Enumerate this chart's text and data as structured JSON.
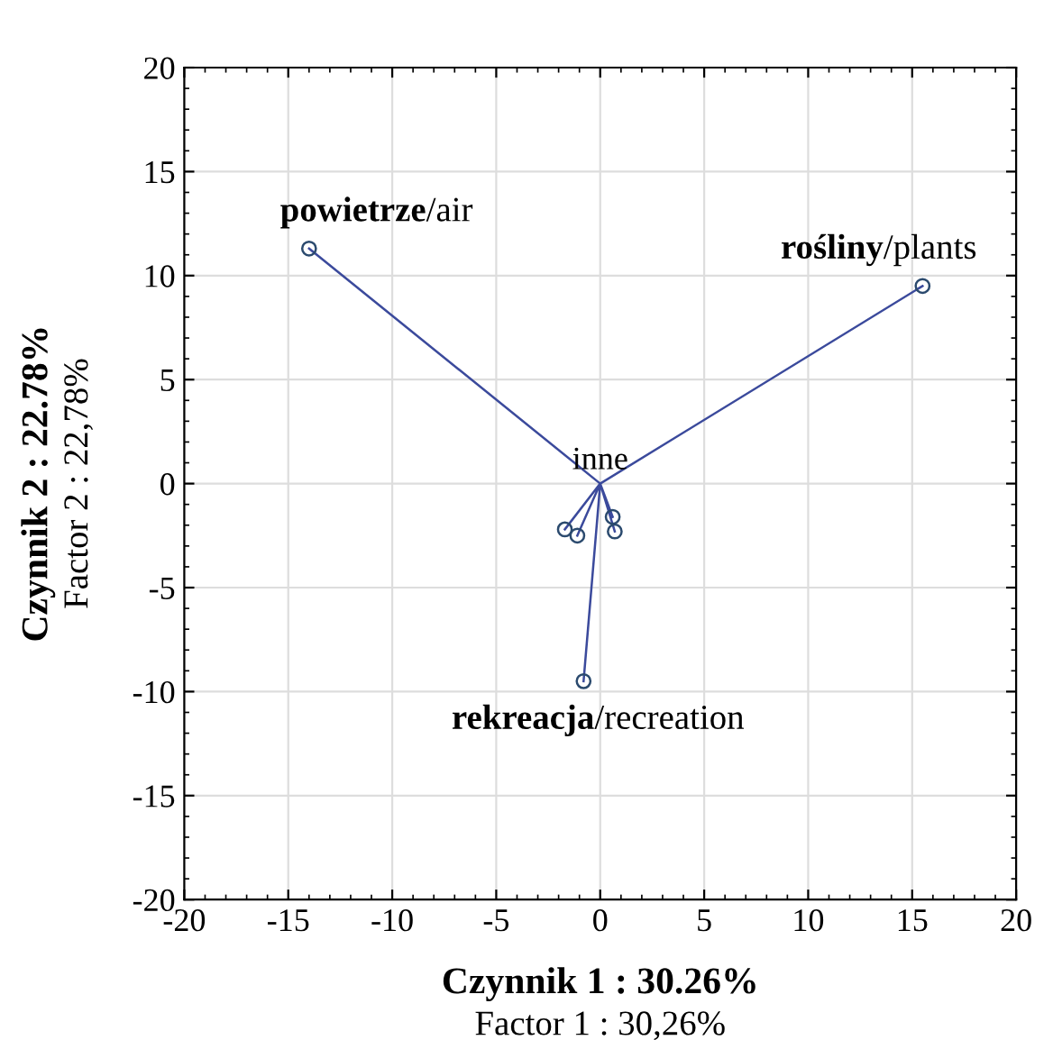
{
  "chart_data": {
    "type": "scatter",
    "xlabel": "Czynnik 1 : 30.26%\nFactor 1 : 30,26%",
    "ylabel": "Czynnik 2 : 22.78%\nFactor 2 : 22,78%",
    "series": [
      {
        "type": "line",
        "color": "#3b4a9c",
        "x": [
          -14.0,
          0,
          15.5,
          null,
          0,
          -0.8,
          null,
          0,
          -1.7,
          null,
          0,
          -1.1,
          null,
          0,
          0.7,
          null,
          0,
          0.6
        ],
        "values": [
          11.3,
          0,
          9.5,
          null,
          0,
          -9.5,
          null,
          0,
          -2.2,
          null,
          0,
          -2.5,
          null,
          0,
          -2.3,
          null,
          0,
          -1.6
        ]
      },
      {
        "color": "#2b4a6e",
        "marker": "circle",
        "x": [
          -14.0,
          15.5,
          -0.8,
          -1.7,
          -1.1,
          0.7,
          0.6
        ],
        "values": [
          11.3,
          9.5,
          -9.5,
          -2.2,
          -2.5,
          -2.3,
          -1.6
        ]
      }
    ],
    "annotations": [
      {
        "text": "powietrze/air",
        "x": -14.0,
        "y": 11.3
      },
      {
        "text": "rośliny/plants",
        "x": 15.5,
        "y": 9.5
      },
      {
        "text": "rekreacja/recreation",
        "x": -0.8,
        "y": -9.5
      },
      {
        "text": "inne",
        "x": 0,
        "y": 0
      }
    ],
    "xlim": [
      -20,
      20
    ],
    "ylim": [
      -20,
      20
    ],
    "xticks": [
      -20,
      -15,
      -10,
      -5,
      0,
      5,
      10,
      15,
      20
    ],
    "yticks": [
      -20,
      -15,
      -10,
      -5,
      0,
      5,
      10,
      15,
      20
    ],
    "grid": true
  }
}
